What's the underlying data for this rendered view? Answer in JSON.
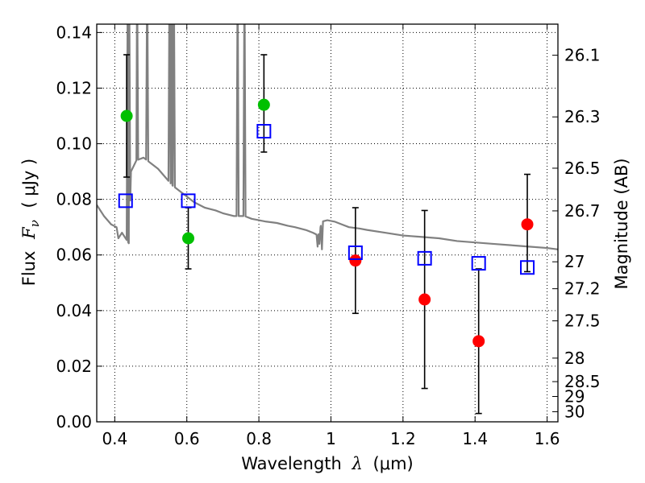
{
  "chart_data": {
    "type": "scatter",
    "xlabel": {
      "prefix": "Wavelength",
      "symbol": "λ",
      "unit": "(μm)"
    },
    "ylabel": {
      "prefix": "Flux",
      "symbol": "F",
      "subscript": "ν",
      "unit": "( μJy )"
    },
    "ylabel_right": "Magnitude (AB)",
    "xlim": [
      0.35,
      1.63
    ],
    "ylim": [
      0.0,
      0.143
    ],
    "grid": "dotted",
    "xticks": [
      {
        "value": 0.4,
        "label": "0.4"
      },
      {
        "value": 0.6,
        "label": "0.6"
      },
      {
        "value": 0.8,
        "label": "0.8"
      },
      {
        "value": 1.0,
        "label": "1"
      },
      {
        "value": 1.2,
        "label": "1.2"
      },
      {
        "value": 1.4,
        "label": "1.4"
      },
      {
        "value": 1.6,
        "label": "1.6"
      }
    ],
    "yticks": [
      {
        "value": 0.0,
        "label": "0.00"
      },
      {
        "value": 0.02,
        "label": "0.02"
      },
      {
        "value": 0.04,
        "label": "0.04"
      },
      {
        "value": 0.06,
        "label": "0.06"
      },
      {
        "value": 0.08,
        "label": "0.08"
      },
      {
        "value": 0.1,
        "label": "0.10"
      },
      {
        "value": 0.12,
        "label": "0.12"
      },
      {
        "value": 0.14,
        "label": "0.14"
      }
    ],
    "magnitude_ticks": [
      {
        "mag": 26.1,
        "label": "26.1"
      },
      {
        "mag": 26.3,
        "label": "26.3"
      },
      {
        "mag": 26.5,
        "label": "26.5"
      },
      {
        "mag": 26.7,
        "label": "26.7"
      },
      {
        "mag": 27.0,
        "label": "27"
      },
      {
        "mag": 27.2,
        "label": "27.2"
      },
      {
        "mag": 27.5,
        "label": "27.5"
      },
      {
        "mag": 28.0,
        "label": "28"
      },
      {
        "mag": 28.5,
        "label": "28.5"
      },
      {
        "mag": 29.0,
        "label": "29"
      },
      {
        "mag": 30.0,
        "label": "30"
      }
    ],
    "colors": {
      "model": "#808080",
      "green": "#00c000",
      "red": "#ff0000",
      "blue": "#0000ff",
      "errorbar": "#000000"
    },
    "model_spectrum": {
      "name": "model SED",
      "continuum": [
        [
          0.35,
          0.078
        ],
        [
          0.37,
          0.074
        ],
        [
          0.39,
          0.071
        ],
        [
          0.405,
          0.07
        ],
        [
          0.41,
          0.066
        ],
        [
          0.42,
          0.068
        ],
        [
          0.43,
          0.066
        ],
        [
          0.44,
          0.064
        ],
        [
          0.445,
          0.09
        ],
        [
          0.46,
          0.094
        ],
        [
          0.48,
          0.095
        ],
        [
          0.5,
          0.093
        ],
        [
          0.52,
          0.091
        ],
        [
          0.54,
          0.088
        ],
        [
          0.56,
          0.085
        ],
        [
          0.58,
          0.083
        ],
        [
          0.6,
          0.081
        ],
        [
          0.62,
          0.079
        ],
        [
          0.65,
          0.077
        ],
        [
          0.68,
          0.076
        ],
        [
          0.7,
          0.075
        ],
        [
          0.73,
          0.074
        ],
        [
          0.76,
          0.074
        ],
        [
          0.78,
          0.073
        ],
        [
          0.8,
          0.0725
        ],
        [
          0.82,
          0.072
        ],
        [
          0.85,
          0.0715
        ],
        [
          0.88,
          0.0705
        ],
        [
          0.9,
          0.07
        ],
        [
          0.93,
          0.069
        ],
        [
          0.95,
          0.068
        ],
        [
          0.965,
          0.067
        ],
        [
          0.975,
          0.072
        ],
        [
          0.99,
          0.0725
        ],
        [
          1.01,
          0.072
        ],
        [
          1.03,
          0.071
        ],
        [
          1.05,
          0.07
        ],
        [
          1.08,
          0.0695
        ],
        [
          1.1,
          0.069
        ],
        [
          1.15,
          0.068
        ],
        [
          1.2,
          0.067
        ],
        [
          1.25,
          0.0665
        ],
        [
          1.3,
          0.066
        ],
        [
          1.35,
          0.065
        ],
        [
          1.4,
          0.0645
        ],
        [
          1.45,
          0.064
        ],
        [
          1.5,
          0.0635
        ],
        [
          1.55,
          0.063
        ],
        [
          1.6,
          0.0625
        ],
        [
          1.63,
          0.062
        ]
      ],
      "emission_lines": [
        {
          "x": 0.436,
          "peak": 0.143,
          "base": 0.09
        },
        {
          "x": 0.44,
          "peak": 0.143,
          "base": 0.09
        },
        {
          "x": 0.462,
          "peak": 0.143,
          "base": 0.094
        },
        {
          "x": 0.49,
          "peak": 0.143,
          "base": 0.094
        },
        {
          "x": 0.552,
          "peak": 0.143,
          "base": 0.086
        },
        {
          "x": 0.558,
          "peak": 0.143,
          "base": 0.085
        },
        {
          "x": 0.564,
          "peak": 0.143,
          "base": 0.084
        },
        {
          "x": 0.741,
          "peak": 0.143,
          "base": 0.074
        },
        {
          "x": 0.76,
          "peak": 0.143,
          "base": 0.074
        }
      ],
      "absorption_dips": [
        {
          "x": 0.963,
          "depth": 0.063
        },
        {
          "x": 0.968,
          "depth": 0.064
        },
        {
          "x": 0.975,
          "depth": 0.062
        }
      ]
    },
    "series": [
      {
        "name": "green points",
        "marker": "filled-circle",
        "color": "#00c000",
        "points": [
          {
            "x": 0.433,
            "y": 0.11,
            "err": [
              0.088,
              0.132
            ]
          },
          {
            "x": 0.604,
            "y": 0.066,
            "err": [
              0.055,
              0.077
            ]
          },
          {
            "x": 0.814,
            "y": 0.114,
            "err": [
              0.097,
              0.132
            ]
          }
        ]
      },
      {
        "name": "red points",
        "marker": "filled-circle",
        "color": "#ff0000",
        "points": [
          {
            "x": 1.068,
            "y": 0.058,
            "err": [
              0.039,
              0.077
            ]
          },
          {
            "x": 1.26,
            "y": 0.044,
            "err": [
              0.012,
              0.076
            ]
          },
          {
            "x": 1.41,
            "y": 0.029,
            "err": [
              0.003,
              0.055
            ]
          },
          {
            "x": 1.545,
            "y": 0.071,
            "err": [
              0.054,
              0.089
            ]
          }
        ]
      },
      {
        "name": "model photometry",
        "marker": "open-square",
        "color": "#0000ff",
        "points": [
          {
            "x": 0.43,
            "y": 0.0795
          },
          {
            "x": 0.604,
            "y": 0.0795
          },
          {
            "x": 0.814,
            "y": 0.1045
          },
          {
            "x": 1.068,
            "y": 0.0608
          },
          {
            "x": 1.26,
            "y": 0.0588
          },
          {
            "x": 1.41,
            "y": 0.057
          },
          {
            "x": 1.545,
            "y": 0.0555
          }
        ]
      }
    ]
  }
}
